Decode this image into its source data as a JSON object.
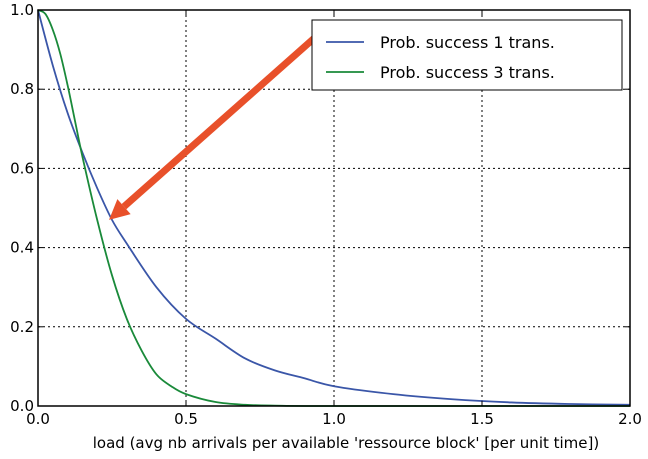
{
  "chart_data": {
    "type": "line",
    "title": "",
    "xlabel": "load (avg nb arrivals per available 'ressource block' [per unit time])",
    "ylabel": "",
    "xlim": [
      0,
      2
    ],
    "ylim": [
      0,
      1
    ],
    "grid": true,
    "legend_position": "top-right",
    "x_ticks": [
      "0.0",
      "0.5",
      "1.0",
      "1.5",
      "2.0"
    ],
    "y_ticks": [
      "0.0",
      "0.2",
      "0.4",
      "0.6",
      "0.8",
      "1.0"
    ],
    "series": [
      {
        "name": "Prob. success 1 trans.",
        "color": "#3a56a8",
        "x": [
          0,
          0.05,
          0.1,
          0.15,
          0.2,
          0.25,
          0.3,
          0.4,
          0.5,
          0.6,
          0.7,
          0.8,
          0.9,
          1.0,
          1.2,
          1.4,
          1.6,
          1.8,
          2.0
        ],
        "y": [
          1.0,
          0.86,
          0.74,
          0.64,
          0.55,
          0.47,
          0.41,
          0.3,
          0.22,
          0.17,
          0.12,
          0.09,
          0.07,
          0.05,
          0.03,
          0.017,
          0.009,
          0.005,
          0.003
        ]
      },
      {
        "name": "Prob. success 3 trans.",
        "color": "#1a8a3a",
        "x": [
          0,
          0.025,
          0.05,
          0.075,
          0.1,
          0.125,
          0.15,
          0.2,
          0.25,
          0.3,
          0.35,
          0.4,
          0.45,
          0.5,
          0.6,
          0.7,
          0.8,
          1.0,
          2.0
        ],
        "y": [
          1.0,
          0.99,
          0.95,
          0.89,
          0.81,
          0.72,
          0.63,
          0.47,
          0.33,
          0.22,
          0.14,
          0.08,
          0.05,
          0.03,
          0.01,
          0.003,
          0.001,
          0.0,
          0.0
        ]
      }
    ],
    "annotation": {
      "type": "arrow",
      "color": "#e8502a",
      "from": [
        0.95,
        0.94
      ],
      "to": [
        0.24,
        0.47
      ]
    }
  }
}
